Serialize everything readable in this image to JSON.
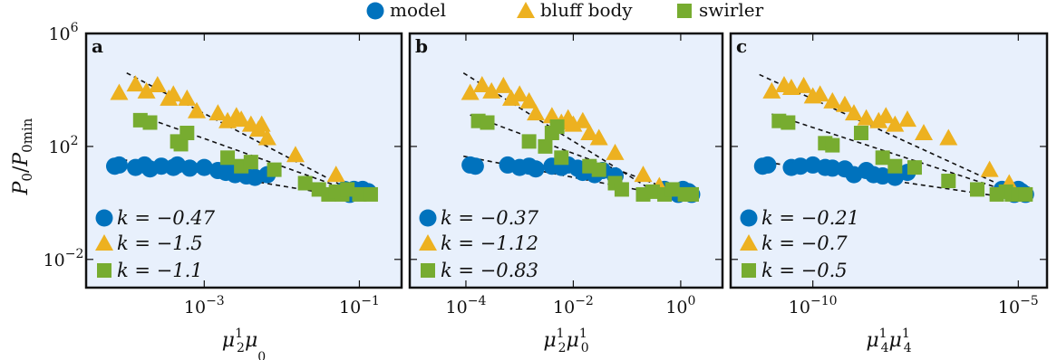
{
  "legend": [
    {
      "name": "model",
      "color": "#0072BD",
      "marker": "circle"
    },
    {
      "name": "bluff body",
      "color": "#EDB120",
      "marker": "triangle"
    },
    {
      "name": "swirler",
      "color": "#77AC30",
      "marker": "square"
    }
  ],
  "colors": {
    "panel_bg": "#E8F0FC",
    "fit_line": "#111111"
  },
  "ylabel": {
    "base": "P",
    "sub1": "0",
    "slash": "/",
    "base2": "P",
    "sub2": "0min"
  },
  "y_ticks": [
    {
      "value": 0.01,
      "base": "10",
      "exp": "−2"
    },
    {
      "value": 100,
      "base": "10",
      "exp": "2"
    },
    {
      "value": 1000000,
      "base": "10",
      "exp": "6"
    }
  ],
  "ylim": [
    0.001,
    1000000
  ],
  "chart_data": [
    {
      "type": "scatter",
      "panel": "a",
      "xscale": "log",
      "yscale": "log",
      "xlim": [
        3e-05,
        0.35
      ],
      "ylim": [
        0.001,
        1000000
      ],
      "xlabel": {
        "mu": "μ",
        "sup1": "1",
        "sub1": "2",
        "mu2": "μ",
        "sup2": "",
        "sub2": "0"
      },
      "x_ticks": [
        {
          "value": 0.001,
          "base": "10",
          "exp": "−3"
        },
        {
          "value": 0.1,
          "base": "10",
          "exp": "−1"
        }
      ],
      "k_labels": [
        "k = −0.47",
        "k = −1.5",
        "k = −1.1"
      ],
      "series": [
        {
          "name": "model",
          "k": -0.47,
          "x": [
            7e-05,
            8e-05,
            0.00013,
            0.00017,
            0.0002,
            0.00028,
            0.0004,
            0.00045,
            0.00065,
            0.001,
            0.0015,
            0.0019,
            0.0022,
            0.0025,
            0.003,
            0.0035,
            0.0045,
            0.0065,
            0.065,
            0.075,
            0.085,
            0.1,
            0.11,
            0.13
          ],
          "y": [
            20,
            22,
            18,
            22,
            16,
            20,
            18,
            22,
            17,
            18,
            14,
            12,
            16,
            10,
            15,
            9,
            8,
            10,
            3,
            2,
            3,
            2.5,
            3,
            2.5
          ],
          "fit": {
            "x": [
              7e-05,
              0.14
            ],
            "y": [
              38,
              1.2
            ]
          }
        },
        {
          "name": "bluff body",
          "k": -1.5,
          "x": [
            8e-05,
            0.00013,
            0.00018,
            0.00025,
            0.00035,
            0.0004,
            0.0006,
            0.0008,
            0.0015,
            0.002,
            0.0026,
            0.003,
            0.004,
            0.005,
            0.0055,
            0.0065,
            0.015,
            0.05
          ],
          "y": [
            8000,
            16000,
            9000,
            15000,
            5000,
            7000,
            5000,
            1800,
            1500,
            800,
            1200,
            900,
            600,
            400,
            600,
            200,
            50,
            10
          ],
          "fit": {
            "x": [
              0.0001,
              0.12
            ],
            "y": [
              40000,
              1.5
            ]
          }
        },
        {
          "name": "swirler",
          "k": -1.1,
          "x": [
            0.00015,
            0.0002,
            0.00045,
            0.0005,
            0.0006,
            0.002,
            0.003,
            0.004,
            0.008,
            0.02,
            0.03,
            0.04,
            0.05,
            0.06,
            0.07,
            0.1,
            0.14
          ],
          "y": [
            850,
            700,
            150,
            120,
            300,
            40,
            20,
            28,
            15,
            5,
            3,
            2,
            2.5,
            2,
            3,
            2,
            2
          ],
          "fit": {
            "x": [
              0.00013,
              0.14
            ],
            "y": [
              1400,
              1.5
            ]
          }
        }
      ]
    },
    {
      "type": "scatter",
      "panel": "b",
      "xscale": "log",
      "yscale": "log",
      "xlim": [
        9e-06,
        6
      ],
      "ylim": [
        0.001,
        1000000
      ],
      "xlabel": {
        "mu": "μ",
        "sup1": "1",
        "sub1": "2",
        "mu2": "μ",
        "sup2": "1",
        "sub2": "0"
      },
      "x_ticks": [
        {
          "value": 0.0001,
          "base": "10",
          "exp": "−4"
        },
        {
          "value": 0.01,
          "base": "10",
          "exp": "−2"
        },
        {
          "value": 1,
          "base": "10",
          "exp": "0"
        }
      ],
      "k_labels": [
        "k = −0.37",
        "k = −1.12",
        "k = −0.83"
      ],
      "series": [
        {
          "name": "model",
          "k": -0.37,
          "x": [
            0.00012,
            0.00015,
            0.0006,
            0.001,
            0.0015,
            0.002,
            0.004,
            0.006,
            0.008,
            0.012,
            0.015,
            0.02,
            0.025,
            0.035,
            0.06,
            0.5,
            0.7,
            0.9,
            1.1,
            1.4,
            1.6
          ],
          "y": [
            22,
            20,
            22,
            18,
            20,
            16,
            20,
            18,
            22,
            17,
            12,
            14,
            10,
            14,
            9,
            3,
            2.5,
            2,
            3,
            2.5,
            2
          ],
          "fit": {
            "x": [
              9e-05,
              1.8
            ],
            "y": [
              45,
              1.2
            ]
          }
        },
        {
          "name": "bluff body",
          "k": -1.12,
          "x": [
            0.00012,
            0.0002,
            0.0003,
            0.0005,
            0.0007,
            0.001,
            0.0015,
            0.002,
            0.004,
            0.006,
            0.008,
            0.01,
            0.015,
            0.02,
            0.03,
            0.06,
            0.2,
            0.4
          ],
          "y": [
            8000,
            15000,
            9000,
            14000,
            5000,
            7000,
            4000,
            1500,
            1200,
            700,
            1000,
            600,
            800,
            300,
            200,
            60,
            10,
            4
          ],
          "fit": {
            "x": [
              9e-05,
              0.5
            ],
            "y": [
              40000,
              1.5
            ]
          }
        },
        {
          "name": "swirler",
          "k": -0.83,
          "x": [
            0.00017,
            0.00025,
            0.0015,
            0.003,
            0.004,
            0.005,
            0.006,
            0.02,
            0.03,
            0.06,
            0.08,
            0.2,
            0.3,
            0.5,
            0.7,
            1.2,
            1.6
          ],
          "y": [
            800,
            700,
            150,
            100,
            300,
            500,
            40,
            20,
            15,
            5,
            3,
            2,
            2.5,
            2,
            3,
            2,
            2
          ],
          "fit": {
            "x": [
              0.00012,
              1.7
            ],
            "y": [
              1300,
              1.5
            ]
          }
        }
      ]
    },
    {
      "type": "scatter",
      "panel": "c",
      "xscale": "log",
      "yscale": "log",
      "xlim": [
        1e-12,
        5e-05
      ],
      "ylim": [
        0.001,
        1000000
      ],
      "xlabel": {
        "mu": "μ",
        "sup1": "1",
        "sub1": "4",
        "mu2": "μ",
        "sup2": "1",
        "sub2": "4"
      },
      "x_ticks": [
        {
          "value": 1e-10,
          "base": "10",
          "exp": "−10"
        },
        {
          "value": 1e-05,
          "base": "10",
          "exp": "−5"
        }
      ],
      "k_labels": [
        "k = −0.21",
        "k = −0.7",
        "k = −0.5"
      ],
      "series": [
        {
          "name": "model",
          "k": -0.21,
          "x": [
            6e-12,
            8e-12,
            3e-11,
            5e-11,
            1e-10,
            2e-10,
            3e-10,
            6e-10,
            1e-09,
            2e-09,
            3e-09,
            5e-09,
            1e-08,
            2e-08,
            4e-06,
            6e-06,
            8e-06,
            1e-05,
            1.2e-05,
            1.5e-05
          ],
          "y": [
            20,
            22,
            18,
            20,
            22,
            18,
            17,
            16,
            10,
            14,
            10,
            9,
            8,
            12,
            3,
            2.5,
            2,
            3,
            2.5,
            2
          ],
          "fit": {
            "x": [
              5e-12,
              1.8e-05
            ],
            "y": [
              30,
              1.2
            ]
          }
        },
        {
          "name": "bluff body",
          "k": -0.7,
          "x": [
            1e-11,
            2e-11,
            3e-11,
            6e-11,
            1e-10,
            1.5e-10,
            3e-10,
            6e-10,
            1e-09,
            2e-09,
            4e-09,
            6e-09,
            1e-08,
            2e-08,
            5e-08,
            2e-07,
            2e-06,
            6e-06
          ],
          "y": [
            9000,
            15000,
            12000,
            14000,
            6000,
            7000,
            4000,
            3000,
            1500,
            1000,
            800,
            1200,
            600,
            900,
            300,
            200,
            15,
            5
          ],
          "fit": {
            "x": [
              5e-12,
              1.8e-05
            ],
            "y": [
              35000,
              1.5
            ]
          }
        },
        {
          "name": "swirler",
          "k": -0.5,
          "x": [
            1.5e-11,
            2.5e-11,
            2e-10,
            3e-10,
            1.5e-09,
            5e-09,
            1e-08,
            3e-08,
            2e-07,
            1e-06,
            3e-06,
            5e-06,
            7e-06,
            1e-05,
            1.5e-05
          ],
          "y": [
            800,
            700,
            130,
            110,
            300,
            40,
            20,
            18,
            6,
            3,
            2,
            2.5,
            2,
            2,
            2
          ],
          "fit": {
            "x": [
              1e-11,
              1.8e-05
            ],
            "y": [
              1400,
              1.5
            ]
          }
        }
      ]
    }
  ]
}
